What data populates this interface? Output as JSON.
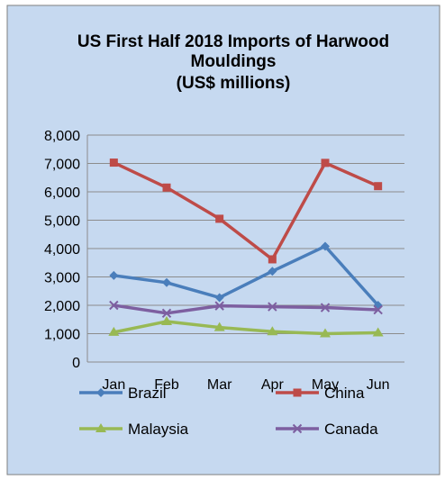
{
  "chart_data": {
    "type": "line",
    "title_lines": [
      "US First Half 2018 Imports of Harwood",
      "Mouldings",
      "(US$ millions)"
    ],
    "categories": [
      "Jan",
      "Feb",
      "Mar",
      "Apr",
      "May",
      "Jun"
    ],
    "ylim": [
      0,
      8000
    ],
    "yticks": [
      0,
      1000,
      2000,
      3000,
      4000,
      5000,
      6000,
      7000,
      8000
    ],
    "ytick_labels": [
      "0",
      "1,000",
      "2,000",
      "3,000",
      "4,000",
      "5,000",
      "6,000",
      "7,000",
      "8,000"
    ],
    "grid": true,
    "legend_position": "bottom",
    "series": [
      {
        "name": "Brazil",
        "marker": "diamond",
        "color": "#4a7ebb",
        "values": [
          3050,
          2800,
          2270,
          3200,
          4080,
          2000
        ]
      },
      {
        "name": "China",
        "marker": "square",
        "color": "#be4b48",
        "values": [
          7030,
          6150,
          5050,
          3620,
          7020,
          6200
        ]
      },
      {
        "name": "Malaysia",
        "marker": "triangle",
        "color": "#98b954",
        "values": [
          1050,
          1430,
          1220,
          1070,
          1000,
          1030
        ]
      },
      {
        "name": "Canada",
        "marker": "x",
        "color": "#7d5fa0",
        "values": [
          2000,
          1720,
          1980,
          1950,
          1920,
          1840
        ]
      }
    ]
  },
  "style": {
    "background": "#c6d9f0",
    "plot_background": "#c6d9f0",
    "gridline": "#8c8c8c",
    "border": "#7f7f7f"
  }
}
